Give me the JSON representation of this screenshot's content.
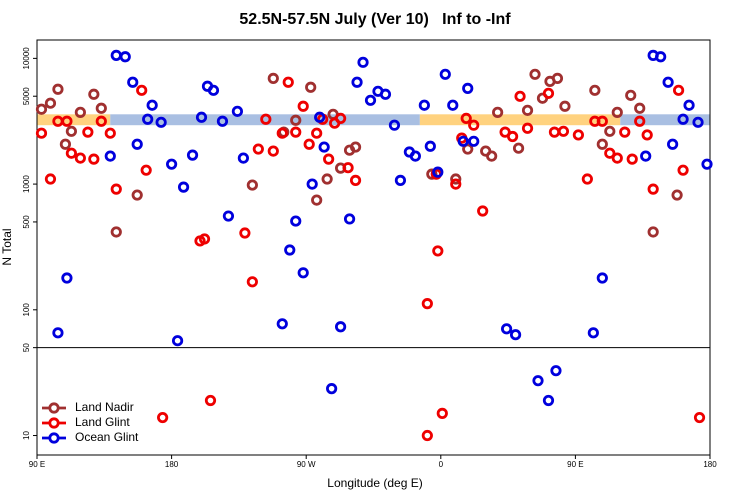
{
  "chart_data": {
    "type": "scatter",
    "title": "52.5N-57.5N July (Ver 10)   Inf to -Inf",
    "xlabel": "Longitude (deg E)",
    "ylabel": "N Total",
    "xlim": [
      90,
      540
    ],
    "ylim": [
      7,
      14000
    ],
    "log_y": true,
    "xticks": [
      {
        "value": 90,
        "label": "90 E"
      },
      {
        "value": 180,
        "label": "180"
      },
      {
        "value": 270,
        "label": "90 W"
      },
      {
        "value": 360,
        "label": "0"
      },
      {
        "value": 450,
        "label": "90 E"
      },
      {
        "value": 540,
        "label": "180"
      }
    ],
    "yticks": [
      10,
      50,
      100,
      500,
      1000,
      5000,
      10000
    ],
    "hline": 50,
    "band": [
      2940,
      3590
    ],
    "band_segments": [
      {
        "x": [
          90,
          139
        ],
        "color": "#ffd27f"
      },
      {
        "x": [
          139,
          346
        ],
        "color": "#a9bfe2"
      },
      {
        "x": [
          346,
          480
        ],
        "color": "#ffd27f"
      },
      {
        "x": [
          480,
          540
        ],
        "color": "#a9bfe2"
      }
    ],
    "legend": "bottom-left",
    "series": [
      {
        "name": "Land Nadir",
        "color": "#a03030",
        "x": [
          93,
          99,
          104,
          109,
          113,
          119,
          128,
          133,
          143,
          157,
          234,
          248,
          255,
          263,
          273,
          277,
          284,
          288,
          293,
          299,
          303,
          354,
          370,
          378,
          390,
          394,
          398,
          412,
          418,
          423,
          428,
          433,
          438,
          443,
          463,
          468,
          473,
          478,
          487,
          493,
          502,
          518
        ],
        "values": [
          3940,
          4400,
          5680,
          2075,
          2630,
          3720,
          5180,
          4010,
          416,
          818,
          982,
          6930,
          2590,
          3220,
          5890,
          746,
          1097,
          3590,
          1340,
          1860,
          1970,
          1200,
          1097,
          1900,
          1830,
          1670,
          3720,
          1930,
          3860,
          7470,
          4820,
          6560,
          6930,
          4160,
          5570,
          2075,
          2630,
          3720,
          5080,
          4010,
          416,
          818
        ]
      },
      {
        "name": "Land Glint",
        "color": "#ee0000",
        "x": [
          93,
          99,
          104,
          110,
          113,
          119,
          124,
          128,
          133,
          139,
          143,
          160,
          163,
          174,
          199,
          202,
          206,
          229,
          234,
          238,
          243,
          248,
          254,
          258,
          263,
          268,
          272,
          277,
          281,
          285,
          289,
          293,
          298,
          303,
          351,
          351,
          357,
          358,
          361,
          370,
          374,
          377,
          382,
          388,
          403,
          408,
          413,
          418,
          432,
          436,
          442,
          452,
          458,
          463,
          468,
          473,
          478,
          483,
          488,
          493,
          498,
          502,
          519,
          522,
          533
        ],
        "values": [
          2540,
          1097,
          3160,
          3160,
          1760,
          1610,
          2590,
          1580,
          3160,
          2540,
          912,
          5570,
          1290,
          13.9,
          353,
          366,
          19,
          408,
          167,
          1900,
          3280,
          1830,
          2540,
          6460,
          2590,
          4160,
          2075,
          2540,
          3280,
          1580,
          3050,
          3330,
          1350,
          1070,
          112,
          10,
          1200,
          294,
          15,
          1000,
          2320,
          3330,
          2940,
          611,
          2590,
          2390,
          4990,
          2780,
          5270,
          2590,
          2630,
          2460,
          1097,
          3160,
          3160,
          1760,
          1610,
          2590,
          1580,
          3160,
          2460,
          912,
          5570,
          1290,
          13.9
        ]
      },
      {
        "name": "Ocean Glint",
        "color": "#0000dd",
        "x": [
          104,
          110,
          139,
          143,
          149,
          154,
          157,
          164,
          167,
          173,
          180,
          184,
          188,
          194,
          200,
          204,
          208,
          214,
          218,
          224,
          228,
          254,
          259,
          263,
          268,
          274,
          279,
          282,
          287,
          293,
          299,
          304,
          308,
          313,
          318,
          323,
          329,
          333,
          339,
          343,
          349,
          353,
          358,
          363,
          368,
          375,
          378,
          382,
          404,
          410,
          425,
          432,
          437,
          462,
          468,
          497,
          502,
          507,
          512,
          515,
          522,
          526,
          532,
          538
        ],
        "values": [
          65.6,
          179,
          1670,
          10560,
          10300,
          6460,
          2075,
          3280,
          4240,
          3100,
          1440,
          56.8,
          946,
          1700,
          3400,
          6000,
          5570,
          3160,
          557,
          3790,
          1610,
          77.4,
          299,
          508,
          197,
          1000,
          3400,
          1970,
          23.6,
          73.3,
          528,
          6460,
          9300,
          4640,
          5470,
          5180,
          2940,
          1070,
          1800,
          1670,
          4240,
          2000,
          1245,
          7470,
          4240,
          2190,
          5770,
          2190,
          70.6,
          63.4,
          27.3,
          19,
          32.8,
          65.6,
          179,
          1670,
          10560,
          10300,
          6460,
          2075,
          3280,
          4240,
          3100,
          1440
        ]
      }
    ]
  }
}
